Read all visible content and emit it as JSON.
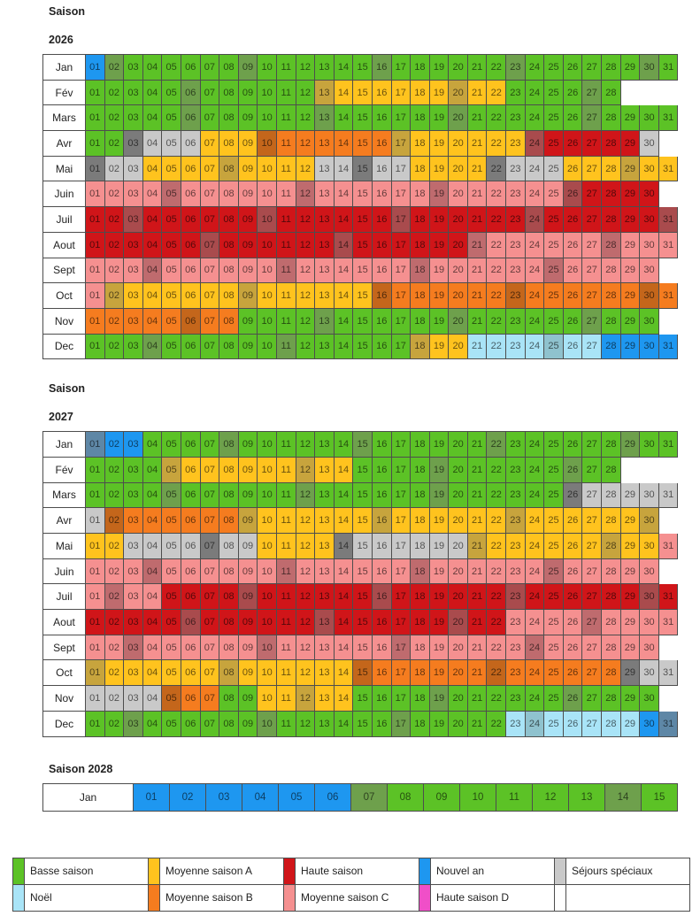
{
  "chart_data": {
    "type": "heatmap",
    "title": "Saison calendar heatmaps 2026-2028 (season pricing calendar, French)",
    "note_friday_shading": "Friday cells are rendered in a darker shade of the season color (uppercase code letters)",
    "palette": {
      "g": "#5CC226",
      "G": "#6EA04C",
      "y": "#FFC31E",
      "Y": "#C7A43D",
      "o": "#F57C1F",
      "O": "#C4661B",
      "c": "#F59090",
      "C": "#BF6B6E",
      "h": "#D01519",
      "H": "#A94B4D",
      "n": "#1E97F0",
      "N": "#5E87A6",
      "x": "#A9E4F7",
      "X": "#8FC2CE",
      "s": "#C9C9C9",
      "S": "#7B7B7B",
      "m": "#F04FC8",
      "": "#FFFFFF"
    },
    "season_names": {
      "g": "Basse saison",
      "y": "Moyenne saison A",
      "o": "Moyenne saison B",
      "c": "Moyenne saison C",
      "h": "Haute saison",
      "n": "Nouvel an",
      "x": "Noël",
      "s": "Séjours spéciaux",
      "m": "Haute saison D"
    },
    "calendars": [
      {
        "title_line1": "Saison",
        "title_line2": "2026",
        "months": [
          {
            "label": "Jan",
            "codes": "nGggggggGggggggGggggggGggggggGg"
          },
          {
            "label": "Fév",
            "codes": "gggggGggggggYyyyyyyYyyggggGg"
          },
          {
            "label": "Mars",
            "codes": "gggggGggggggGggggggGggggggGgggg"
          },
          {
            "label": "Avr",
            "codes": "ggSsssyyyOooooooYyyyyyyHhhhhhs"
          },
          {
            "label": "Mai",
            "codes": "SssyyyyYyyyyssSssyyyySsssyyyYyy"
          },
          {
            "label": "Juin",
            "codes": "ccccCccccccCccccccCccccccHhhhh"
          },
          {
            "label": "Juil",
            "codes": "hhHhhhhhhHhhhhhhHhhhhhhHhhhhhhH"
          },
          {
            "label": "Aout",
            "codes": "hhhhhhHhhhhhhHhhhhhhCccccccCccc"
          },
          {
            "label": "Sept",
            "codes": "cccCccccccCccccccCccccccCccccc"
          },
          {
            "label": "Oct",
            "codes": "cYyyyyyyYyyyyyyOooooooOooooooOo"
          },
          {
            "label": "Nov",
            "codes": "oooooOooggggGggggggGggggggGggg"
          },
          {
            "label": "Dec",
            "codes": "gggGggggggGggggggYyyxxxxXxxnnnn"
          }
        ]
      },
      {
        "title_line1": "Saison",
        "title_line2": "2027",
        "months": [
          {
            "label": "Jan",
            "codes": "NnnggggGggggggGggggggGggggggGgg"
          },
          {
            "label": "Fév",
            "codes": "ggggYyyyyyyYyyggggGggggggGgg"
          },
          {
            "label": "Mars",
            "codes": "ggggGggggggGggggggGggggggSsssss"
          },
          {
            "label": "Avr",
            "codes": "sOooooooYyyyyyyYyyyyyyYyyyyyyY"
          },
          {
            "label": "Mai",
            "codes": "yyssssSssyyyySssssssYyyyyyyYyyc"
          },
          {
            "label": "Juin",
            "codes": "cccCccccccCccccccCccccccCccccc"
          },
          {
            "label": "Juil",
            "codes": "cCcchhhhHhhhhhhHhhhhhhHhhhhhhHh"
          },
          {
            "label": "Aout",
            "codes": "hhhhhHhhhhhhHhhhhhhHhhccccCcccc"
          },
          {
            "label": "Sept",
            "codes": "ccCccccccCccccccCccccccCcccccc"
          },
          {
            "label": "Oct",
            "codes": "YyyyyyyYyyyyyyOooooooOooooooSss"
          },
          {
            "label": "Nov",
            "codes": "ssssOooggyyYyyggggGggggggGgggg"
          },
          {
            "label": "Dec",
            "codes": "ggGggggggGggggggGgggggxXxxxxxnN"
          }
        ]
      },
      {
        "title_line1": "Saison 2028",
        "title_line2": "",
        "wide": true,
        "months": [
          {
            "label": "Jan",
            "codes": "nnnnnnGggggggGg"
          }
        ]
      }
    ],
    "legend": {
      "rows": [
        [
          {
            "key": "g",
            "label": "Basse saison"
          },
          {
            "key": "y",
            "label": "Moyenne saison A"
          },
          {
            "key": "h",
            "label": "Haute saison"
          },
          {
            "key": "n",
            "label": "Nouvel an"
          },
          {
            "key": "s",
            "label": "Séjours spéciaux"
          }
        ],
        [
          {
            "key": "x",
            "label": "Noël"
          },
          {
            "key": "o",
            "label": "Moyenne saison B"
          },
          {
            "key": "c",
            "label": "Moyenne saison C"
          },
          {
            "key": "m",
            "label": "Haute saison D"
          },
          {
            "key": "",
            "label": ""
          }
        ]
      ]
    }
  }
}
